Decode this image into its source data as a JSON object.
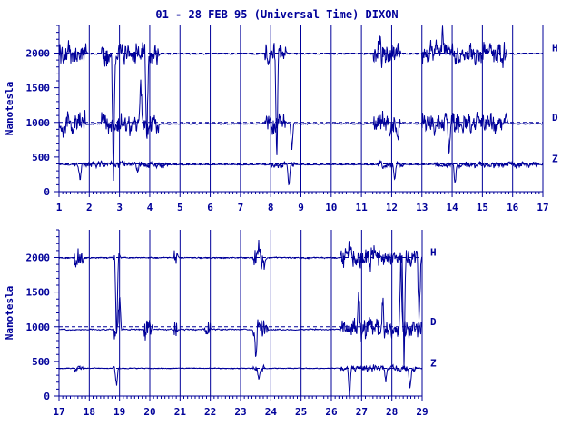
{
  "title": "01 - 28 FEB 95 (Universal Time) DIXON",
  "colors": {
    "ink": "#00009a",
    "background": "#ffffff"
  },
  "chart_data": [
    {
      "type": "line",
      "panel": "upper",
      "xlabel": "",
      "ylabel": "Nanotesla",
      "xlim": [
        1,
        17
      ],
      "x_ticks": [
        "1",
        "2",
        "3",
        "4",
        "5",
        "6",
        "7",
        "8",
        "9",
        "10",
        "11",
        "12",
        "13",
        "14",
        "15",
        "16",
        "17"
      ],
      "ylim": [
        0,
        2400
      ],
      "y_ticks": [
        "0",
        "500",
        "1000",
        "1500",
        "2000"
      ],
      "baselines": [
        2000,
        1000,
        400
      ],
      "series": [
        {
          "name": "H",
          "baseline": 2000,
          "mean": 1990,
          "disturbed_ranges": [
            [
              1,
              1.9
            ],
            [
              2.4,
              4.3
            ],
            [
              7.8,
              8.5
            ],
            [
              11.4,
              12.3
            ],
            [
              13,
              15.8
            ]
          ],
          "spikes": [
            [
              2.8,
              200
            ],
            [
              3.9,
              600
            ],
            [
              8.2,
              400
            ],
            [
              11.6,
              2400
            ],
            [
              13.7,
              2400
            ]
          ]
        },
        {
          "name": "D",
          "baseline": 1000,
          "mean": 980,
          "disturbed_ranges": [
            [
              1,
              1.9
            ],
            [
              2.4,
              4.3
            ],
            [
              7.8,
              8.5
            ],
            [
              11.4,
              12.3
            ],
            [
              13,
              15.8
            ]
          ],
          "spikes": [
            [
              3.7,
              1700
            ],
            [
              8.7,
              600
            ],
            [
              12.2,
              700
            ],
            [
              13.9,
              500
            ]
          ]
        },
        {
          "name": "Z",
          "baseline": 400,
          "mean": 390,
          "disturbed_ranges": [
            [
              1.5,
              4.6
            ],
            [
              8,
              8.8
            ],
            [
              11.5,
              12.4
            ],
            [
              13.4,
              16.8
            ]
          ],
          "spikes": [
            [
              1.7,
              150
            ],
            [
              3.6,
              250
            ],
            [
              8.6,
              60
            ],
            [
              12.1,
              150
            ],
            [
              14.1,
              100
            ]
          ]
        }
      ]
    },
    {
      "type": "line",
      "panel": "lower",
      "xlabel": "",
      "ylabel": "Nanotesla",
      "xlim": [
        17,
        29
      ],
      "x_ticks": [
        "17",
        "18",
        "19",
        "20",
        "21",
        "22",
        "23",
        "24",
        "25",
        "26",
        "27",
        "28",
        "29"
      ],
      "ylim": [
        0,
        2400
      ],
      "y_ticks": [
        "0",
        "500",
        "1000",
        "1500",
        "2000"
      ],
      "baselines": [
        2000,
        1000,
        400
      ],
      "series": [
        {
          "name": "H",
          "baseline": 2000,
          "mean": 1995,
          "disturbed_ranges": [
            [
              17.5,
              17.8
            ],
            [
              18.8,
              19.0
            ],
            [
              20.8,
              20.9
            ],
            [
              23.4,
              23.8
            ],
            [
              26.3,
              29
            ]
          ],
          "spikes": [
            [
              18.9,
              1000
            ],
            [
              23.6,
              2200
            ],
            [
              26.6,
              2250
            ],
            [
              28.4,
              400
            ],
            [
              28.9,
              900
            ]
          ]
        },
        {
          "name": "D",
          "baseline": 1000,
          "mean": 960,
          "disturbed_ranges": [
            [
              18.8,
              19.0
            ],
            [
              19.8,
              20.1
            ],
            [
              20.8,
              20.9
            ],
            [
              21.8,
              22.0
            ],
            [
              23.4,
              23.9
            ],
            [
              26.3,
              29
            ]
          ],
          "spikes": [
            [
              19.0,
              1500
            ],
            [
              23.5,
              600
            ],
            [
              26.9,
              1500
            ],
            [
              27.7,
              1500
            ],
            [
              28.3,
              2000
            ]
          ]
        },
        {
          "name": "Z",
          "baseline": 400,
          "mean": 400,
          "disturbed_ranges": [
            [
              17.5,
              17.8
            ],
            [
              18.8,
              19.0
            ],
            [
              23.4,
              23.8
            ],
            [
              26.3,
              28.8
            ]
          ],
          "spikes": [
            [
              18.9,
              150
            ],
            [
              23.6,
              250
            ],
            [
              26.6,
              0
            ],
            [
              27.8,
              200
            ],
            [
              28.6,
              100
            ]
          ]
        }
      ]
    }
  ]
}
